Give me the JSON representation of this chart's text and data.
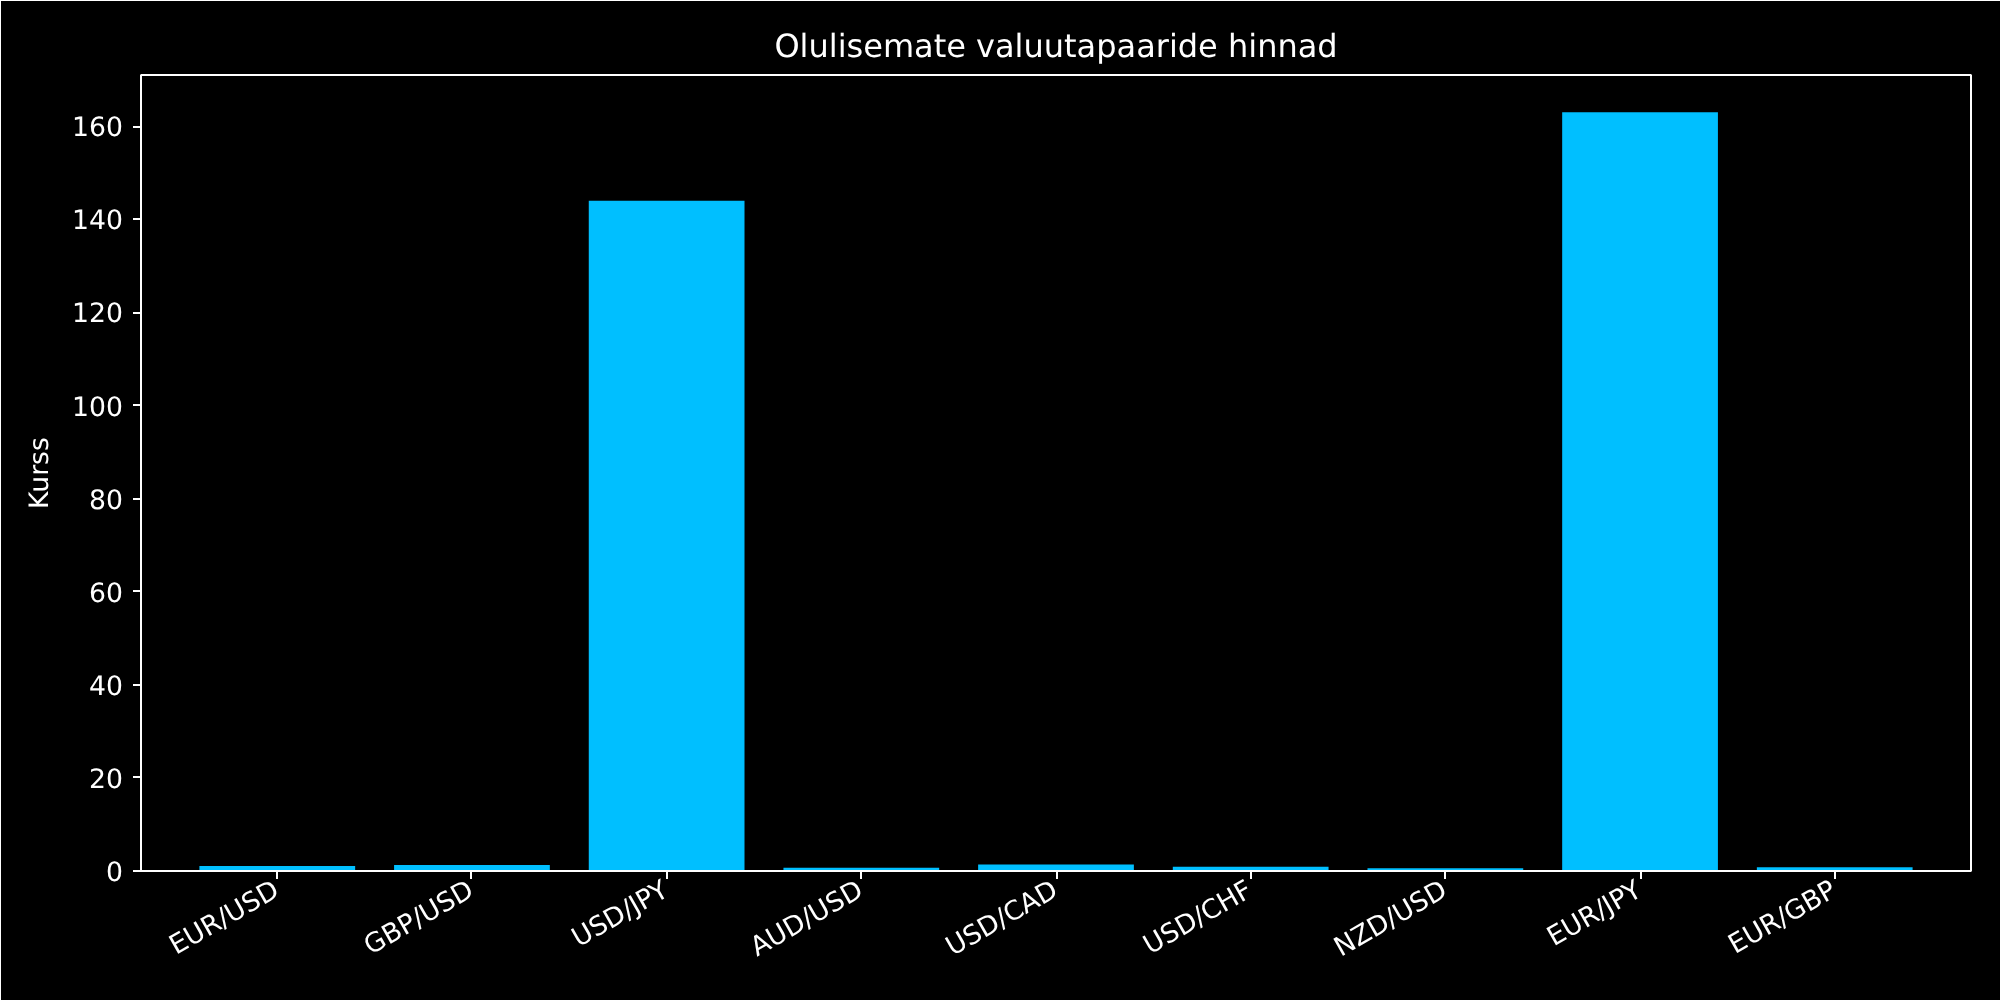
{
  "chart_data": {
    "type": "bar",
    "title": "Olulisemate valuutapaaride hinnad",
    "ylabel": "Kurss",
    "categories": [
      "EUR/USD",
      "GBP/USD",
      "USD/JPY",
      "AUD/USD",
      "USD/CAD",
      "USD/CHF",
      "NZD/USD",
      "EUR/JPY",
      "EUR/GBP"
    ],
    "values": [
      1.1,
      1.3,
      144,
      0.7,
      1.4,
      0.9,
      0.6,
      163,
      0.8
    ],
    "color": "#00bfff",
    "ylim": [
      0,
      171
    ],
    "yticks": [
      0,
      20,
      40,
      60,
      80,
      100,
      120,
      140,
      160
    ],
    "grid": false
  }
}
